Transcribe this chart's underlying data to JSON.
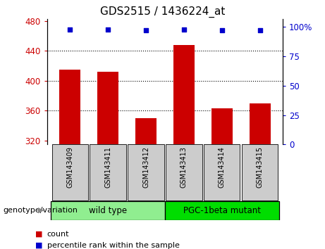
{
  "title": "GDS2515 / 1436224_at",
  "samples": [
    "GSM143409",
    "GSM143411",
    "GSM143412",
    "GSM143413",
    "GSM143414",
    "GSM143415"
  ],
  "bar_values": [
    415,
    412,
    350,
    448,
    363,
    370
  ],
  "percentile_values": [
    98,
    98,
    97,
    98,
    97,
    97
  ],
  "bar_color": "#cc0000",
  "dot_color": "#0000cc",
  "ylim_left": [
    315,
    483
  ],
  "yticks_left": [
    320,
    360,
    400,
    440,
    480
  ],
  "ylim_right": [
    0,
    107
  ],
  "yticks_right": [
    0,
    25,
    50,
    75,
    100
  ],
  "grid_ticks": [
    360,
    400,
    440
  ],
  "groups": [
    {
      "label": "wild type",
      "n": 3,
      "color": "#90ee90"
    },
    {
      "label": "PGC-1beta mutant",
      "n": 3,
      "color": "#00dd00"
    }
  ],
  "group_label": "genotype/variation",
  "legend_count_label": "count",
  "legend_percentile_label": "percentile rank within the sample",
  "left_axis_color": "#cc0000",
  "right_axis_color": "#0000cc",
  "bar_width": 0.55
}
